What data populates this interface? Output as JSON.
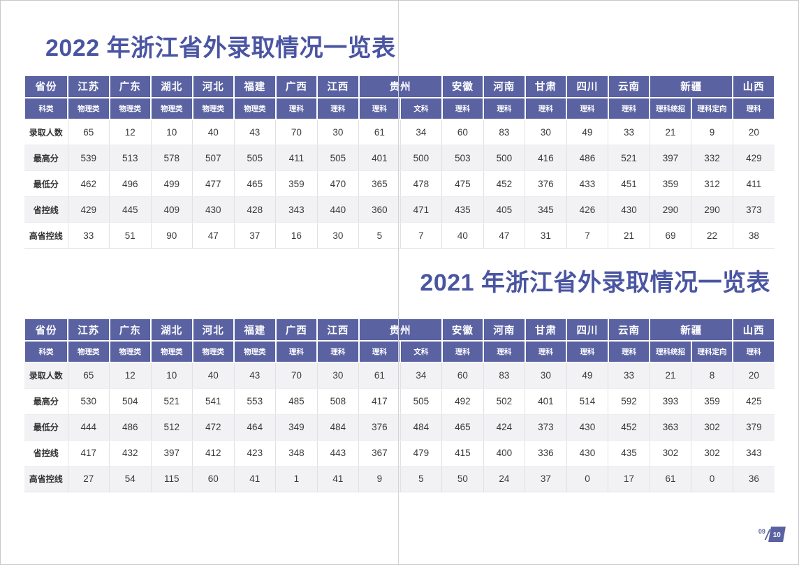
{
  "document": {
    "page_indicator": {
      "current": "09",
      "next": "10"
    }
  },
  "colors": {
    "header_bg": "#5a62a2",
    "title_text": "#4a55a2",
    "stripe_bg": "#f2f2f5",
    "cell_text": "#3a3a3a",
    "accent": "#5a62a2"
  },
  "tables": [
    {
      "title": "2022 年浙江省外录取情况一览表",
      "corner_row1": "省份",
      "corner_row2": "科类",
      "province_groups": [
        {
          "label": "江苏",
          "span": 1
        },
        {
          "label": "广东",
          "span": 1
        },
        {
          "label": "湖北",
          "span": 1
        },
        {
          "label": "河北",
          "span": 1
        },
        {
          "label": "福建",
          "span": 1
        },
        {
          "label": "广西",
          "span": 1
        },
        {
          "label": "江西",
          "span": 1
        },
        {
          "label": "贵州",
          "span": 2
        },
        {
          "label": "安徽",
          "span": 1
        },
        {
          "label": "河南",
          "span": 1
        },
        {
          "label": "甘肃",
          "span": 1
        },
        {
          "label": "四川",
          "span": 1
        },
        {
          "label": "云南",
          "span": 1
        },
        {
          "label": "新疆",
          "span": 2
        },
        {
          "label": "山西",
          "span": 1
        }
      ],
      "subjects": [
        "物理类",
        "物理类",
        "物理类",
        "物理类",
        "物理类",
        "理科",
        "理科",
        "理科",
        "文科",
        "理科",
        "理科",
        "理科",
        "理科",
        "理科",
        "理科统招",
        "理科定向",
        "理科"
      ],
      "rows": [
        {
          "label": "录取人数",
          "values": [
            65,
            12,
            10,
            40,
            43,
            70,
            30,
            61,
            34,
            60,
            83,
            30,
            49,
            33,
            21,
            9,
            20
          ]
        },
        {
          "label": "最高分",
          "values": [
            539,
            513,
            578,
            507,
            505,
            411,
            505,
            401,
            500,
            503,
            500,
            416,
            486,
            521,
            397,
            332,
            429
          ]
        },
        {
          "label": "最低分",
          "values": [
            462,
            496,
            499,
            477,
            465,
            359,
            470,
            365,
            478,
            475,
            452,
            376,
            433,
            451,
            359,
            312,
            411
          ]
        },
        {
          "label": "省控线",
          "values": [
            429,
            445,
            409,
            430,
            428,
            343,
            440,
            360,
            471,
            435,
            405,
            345,
            426,
            430,
            290,
            290,
            373
          ]
        },
        {
          "label": "高省控线",
          "values": [
            33,
            51,
            90,
            47,
            37,
            16,
            30,
            5,
            7,
            40,
            47,
            31,
            7,
            21,
            69,
            22,
            38
          ]
        }
      ],
      "stripe_parity": "odd"
    },
    {
      "title": "2021 年浙江省外录取情况一览表",
      "corner_row1": "省份",
      "corner_row2": "科类",
      "province_groups": [
        {
          "label": "江苏",
          "span": 1
        },
        {
          "label": "广东",
          "span": 1
        },
        {
          "label": "湖北",
          "span": 1
        },
        {
          "label": "河北",
          "span": 1
        },
        {
          "label": "福建",
          "span": 1
        },
        {
          "label": "广西",
          "span": 1
        },
        {
          "label": "江西",
          "span": 1
        },
        {
          "label": "贵州",
          "span": 2
        },
        {
          "label": "安徽",
          "span": 1
        },
        {
          "label": "河南",
          "span": 1
        },
        {
          "label": "甘肃",
          "span": 1
        },
        {
          "label": "四川",
          "span": 1
        },
        {
          "label": "云南",
          "span": 1
        },
        {
          "label": "新疆",
          "span": 2
        },
        {
          "label": "山西",
          "span": 1
        }
      ],
      "subjects": [
        "物理类",
        "物理类",
        "物理类",
        "物理类",
        "物理类",
        "理科",
        "理科",
        "理科",
        "文科",
        "理科",
        "理科",
        "理科",
        "理科",
        "理科",
        "理科统招",
        "理科定向",
        "理科"
      ],
      "rows": [
        {
          "label": "录取人数",
          "values": [
            65,
            12,
            10,
            40,
            43,
            70,
            30,
            61,
            34,
            60,
            83,
            30,
            49,
            33,
            21,
            8,
            20
          ]
        },
        {
          "label": "最高分",
          "values": [
            530,
            504,
            521,
            541,
            553,
            485,
            508,
            417,
            505,
            492,
            502,
            401,
            514,
            592,
            393,
            359,
            425
          ]
        },
        {
          "label": "最低分",
          "values": [
            444,
            486,
            512,
            472,
            464,
            349,
            484,
            376,
            484,
            465,
            424,
            373,
            430,
            452,
            363,
            302,
            379
          ]
        },
        {
          "label": "省控线",
          "values": [
            417,
            432,
            397,
            412,
            423,
            348,
            443,
            367,
            479,
            415,
            400,
            336,
            430,
            435,
            302,
            302,
            343
          ]
        },
        {
          "label": "高省控线",
          "values": [
            27,
            54,
            115,
            60,
            41,
            1,
            41,
            9,
            5,
            50,
            24,
            37,
            0,
            17,
            61,
            0,
            36
          ]
        }
      ],
      "stripe_parity": "even"
    }
  ]
}
